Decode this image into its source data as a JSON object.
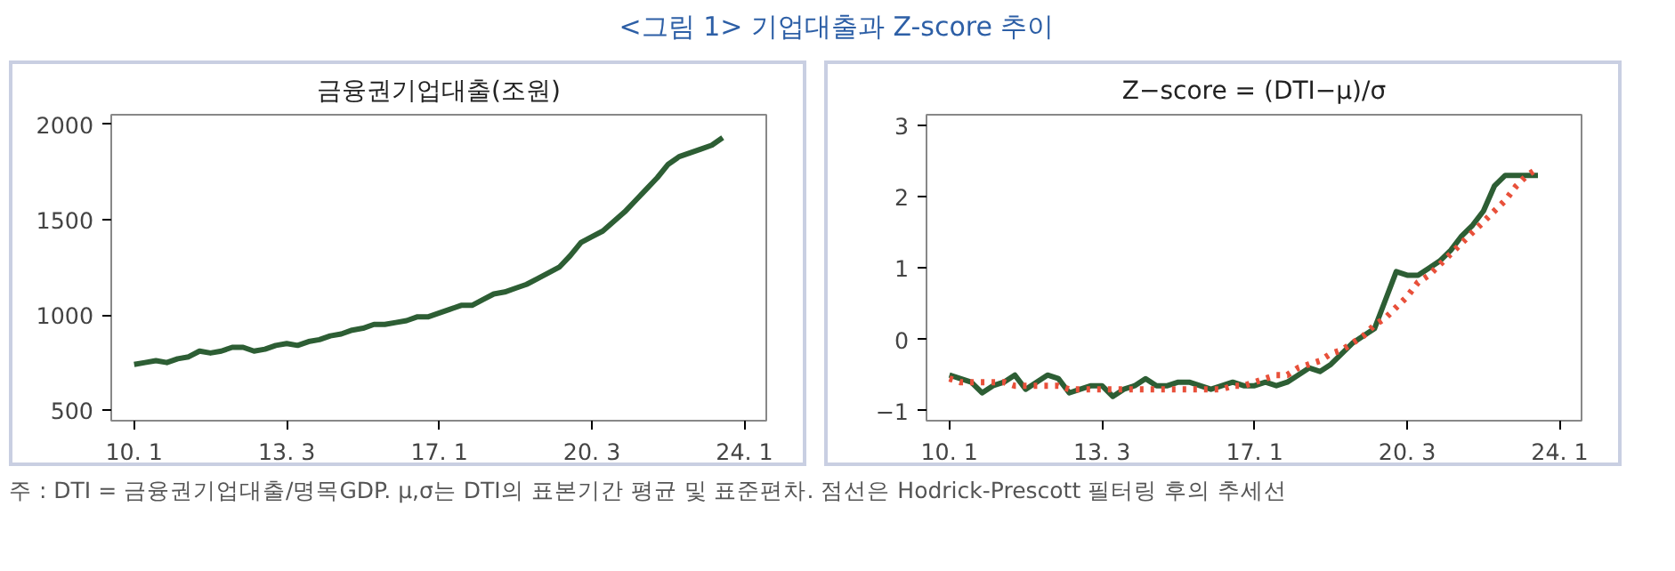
{
  "chart_data": [
    {
      "type": "line",
      "title": "금융권기업대출(조원)",
      "annotations": [
        "<그림 1> 기업대출과 Z-score 추이"
      ],
      "categories": [
        "10. 1",
        null,
        null,
        null,
        null,
        null,
        null,
        null,
        null,
        null,
        null,
        null,
        null,
        null,
        "13. 3",
        null,
        null,
        null,
        null,
        null,
        null,
        null,
        null,
        null,
        null,
        null,
        null,
        null,
        "17. 1",
        null,
        null,
        null,
        null,
        null,
        null,
        null,
        null,
        null,
        null,
        null,
        null,
        null,
        "20. 3",
        null,
        null,
        null,
        null,
        null,
        null,
        null,
        null,
        null,
        null,
        null,
        null,
        null,
        "24. 1"
      ],
      "series": [
        {
          "color": "#2d5e34",
          "values": [
            740,
            750,
            760,
            750,
            770,
            780,
            810,
            800,
            810,
            830,
            830,
            810,
            820,
            840,
            850,
            840,
            860,
            870,
            890,
            900,
            920,
            930,
            950,
            950,
            960,
            970,
            990,
            990,
            1010,
            1030,
            1050,
            1050,
            1080,
            1110,
            1120,
            1140,
            1160,
            1190,
            1220,
            1250,
            1310,
            1380,
            1410,
            1440,
            1490,
            1540,
            1600,
            1660,
            1720,
            1790,
            1830,
            1850,
            1870,
            1890,
            1930,
            null,
            null
          ]
        }
      ],
      "ylim": [
        445,
        2050
      ],
      "yticks": [
        500,
        1000,
        1500,
        2000
      ],
      "grid": false
    },
    {
      "type": "line",
      "title": "Z−score = (DTI−μ)/σ",
      "annotations": [
        "주 : DTI = 금융권기업대출/명목GDP.  μ,σ는 DTI의 표본기간 평균 및 표준편차. 점선은 Hodrick-Prescott 필터링 후의 추세선"
      ],
      "categories": [
        "10. 1",
        null,
        null,
        null,
        null,
        null,
        null,
        null,
        null,
        null,
        null,
        null,
        null,
        null,
        "13. 3",
        null,
        null,
        null,
        null,
        null,
        null,
        null,
        null,
        null,
        null,
        null,
        null,
        null,
        "17. 1",
        null,
        null,
        null,
        null,
        null,
        null,
        null,
        null,
        null,
        null,
        null,
        null,
        null,
        "20. 3",
        null,
        null,
        null,
        null,
        null,
        null,
        null,
        null,
        null,
        null,
        null,
        null,
        null,
        "24. 1"
      ],
      "series": [
        {
          "color": "#2d5e34",
          "line_style": "solid",
          "values": [
            -0.5,
            -0.55,
            -0.6,
            -0.75,
            -0.65,
            -0.6,
            -0.5,
            -0.7,
            -0.6,
            -0.5,
            -0.55,
            -0.75,
            -0.7,
            -0.65,
            -0.65,
            -0.8,
            -0.7,
            -0.65,
            -0.55,
            -0.65,
            -0.65,
            -0.6,
            -0.6,
            -0.65,
            -0.7,
            -0.65,
            -0.6,
            -0.65,
            -0.65,
            -0.6,
            -0.65,
            -0.6,
            -0.5,
            -0.4,
            -0.45,
            -0.35,
            -0.2,
            -0.05,
            0.05,
            0.15,
            0.55,
            0.95,
            0.9,
            0.9,
            1.0,
            1.1,
            1.25,
            1.45,
            1.6,
            1.8,
            2.15,
            2.3,
            2.3,
            2.3,
            2.3,
            null,
            null
          ]
        },
        {
          "color": "#e8503a",
          "line_style": "dotted",
          "values": [
            -0.55,
            -0.6,
            -0.6,
            -0.6,
            -0.6,
            -0.6,
            -0.65,
            -0.65,
            -0.65,
            -0.65,
            -0.65,
            -0.7,
            -0.7,
            -0.7,
            -0.7,
            -0.7,
            -0.7,
            -0.7,
            -0.7,
            -0.7,
            -0.7,
            -0.7,
            -0.7,
            -0.7,
            -0.7,
            -0.7,
            -0.65,
            -0.65,
            -0.6,
            -0.55,
            -0.5,
            -0.5,
            -0.4,
            -0.35,
            -0.3,
            -0.2,
            -0.15,
            -0.05,
            0.05,
            0.2,
            0.3,
            0.45,
            0.6,
            0.8,
            0.9,
            1.05,
            1.2,
            1.35,
            1.5,
            1.65,
            1.8,
            1.95,
            2.15,
            2.3,
            2.4,
            null,
            null
          ]
        }
      ],
      "ylim": [
        -1.14,
        3.15
      ],
      "yticks": [
        -1,
        0,
        1,
        2,
        3
      ],
      "grid": false
    }
  ]
}
